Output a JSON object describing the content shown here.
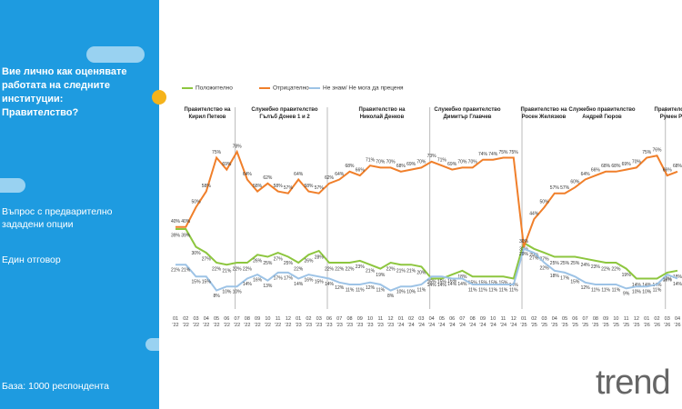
{
  "chart_data": {
    "type": "line",
    "title": "Вие лично как оценявате\nработата на следните\nинституции:\nПравителство?",
    "notes": [
      "Въпрос с предварително\nзададени опции",
      "Един отговор"
    ],
    "base": "База:  1000 респондента",
    "logo": "trend",
    "periods": [
      "Правителство на\nКирил Петков",
      "Служебно правителство\nГълъб Донев 1 и 2",
      "Правителство на\nНиколай Денков",
      "Служебно правителство\nДимитър Главчев",
      "Правителство на\nРосен Желязков",
      "Служебно правителство\nАндрей Гюров",
      "Правителство на\nРумен Радев"
    ],
    "categories": [
      "01\n'22",
      "02\n'22",
      "03\n'22",
      "04\n'22",
      "05\n'22",
      "06\n'22",
      "07\n'22",
      "08\n'22",
      "09\n'22",
      "10\n'22",
      "11\n'22",
      "12\n'22",
      "01\n'23",
      "02\n'23",
      "03\n'23",
      "06\n'23",
      "07\n'23",
      "08\n'23",
      "09\n'23",
      "10\n'23",
      "11\n'23",
      "12\n'23",
      "01\n'24",
      "02\n'24",
      "03\n'24",
      "04\n'24",
      "05\n'24",
      "06\n'24",
      "07\n'24",
      "08\n'24",
      "09\n'24",
      "10\n'24",
      "11\n'24",
      "12\n'24",
      "01\n'25",
      "02\n'25",
      "03\n'25",
      "04\n'25",
      "05\n'25",
      "06\n'25",
      "07\n'25",
      "08\n'25",
      "09\n'25",
      "10\n'25",
      "11\n'25",
      "12\n'25",
      "01\n'26",
      "02\n'26",
      "03\n'26",
      "04\n'26"
    ],
    "ylim": [
      0,
      100
    ],
    "series": [
      {
        "name": "Положително",
        "color": "#8dc63f",
        "values": [
          39,
          39,
          30,
          27,
          22,
          21,
          22,
          22,
          26,
          25,
          27,
          25,
          22,
          26,
          28,
          22,
          22,
          22,
          23,
          21,
          19,
          22,
          21,
          21,
          20,
          14,
          14,
          16,
          18,
          15,
          15,
          15,
          15,
          14,
          32,
          29,
          27,
          25,
          25,
          25,
          24,
          23,
          22,
          22,
          19,
          14,
          14,
          14,
          17,
          18
        ],
        "value_labels": [
          "39%",
          "39%",
          "30%",
          "27%",
          "22%",
          "21%",
          "22%",
          "22%",
          "26%",
          "25%",
          "27%",
          "25%",
          "22%",
          "26%",
          "28%",
          "22%",
          "22%",
          "22%",
          "23%",
          "21%",
          "19%",
          "22%",
          "21%",
          "21%",
          "20%",
          "14%",
          "14%",
          "16%",
          "18%",
          "15%",
          "15%",
          "15%",
          "15%",
          "14%",
          "32%",
          "29%",
          "27%",
          "25%",
          "25%",
          "25%",
          "24%",
          "23%",
          "22%",
          "22%",
          "19%",
          "14%",
          "14%",
          "14%",
          "17%",
          "18%"
        ]
      },
      {
        "name": "Отрицателно",
        "color": "#f07f2a",
        "values": [
          40,
          40,
          50,
          58,
          75,
          69,
          78,
          64,
          58,
          62,
          58,
          57,
          64,
          58,
          57,
          62,
          64,
          68,
          66,
          71,
          70,
          70,
          68,
          69,
          70,
          73,
          71,
          69,
          70,
          70,
          74,
          74,
          75,
          75,
          30,
          44,
          50,
          57,
          57,
          60,
          64,
          66,
          68,
          68,
          69,
          70,
          75,
          76,
          66,
          68
        ],
        "value_labels": [
          "40%",
          "40%",
          "50%",
          "58%",
          "75%",
          "69%",
          "78%",
          "64%",
          "58%",
          "62%",
          "58%",
          "57%",
          "64%",
          "58%",
          "57%",
          "62%",
          "64%",
          "68%",
          "66%",
          "71%",
          "70%",
          "70%",
          "68%",
          "69%",
          "70%",
          "73%",
          "71%",
          "69%",
          "70%",
          "70%",
          "74%",
          "74%",
          "75%",
          "75%",
          "30%",
          "44%",
          "50%",
          "57%",
          "57%",
          "60%",
          "64%",
          "66%",
          "68%",
          "68%",
          "69%",
          "70%",
          "75%",
          "76%",
          "66%",
          "68%"
        ]
      },
      {
        "name": "Не знам/ Не мога да преценя",
        "color": "#9dc3e6",
        "values": [
          21,
          21,
          15,
          15,
          8,
          10,
          10,
          14,
          16,
          13,
          17,
          17,
          14,
          16,
          15,
          14,
          12,
          11,
          11,
          12,
          11,
          8,
          10,
          10,
          11,
          15,
          15,
          14,
          14,
          11,
          11,
          11,
          11,
          11,
          29,
          27,
          22,
          18,
          17,
          15,
          12,
          11,
          11,
          11,
          9,
          10,
          10,
          11,
          16,
          14
        ],
        "value_labels": [
          "21%",
          "21%",
          "15%",
          "15%",
          "8%",
          "10%",
          "10%",
          "14%",
          "16%",
          "13%",
          "17%",
          "17%",
          "14%",
          "16%",
          "15%",
          "14%",
          "12%",
          "11%",
          "11%",
          "12%",
          "11%",
          "8%",
          "10%",
          "10%",
          "11%",
          "15%",
          "15%",
          "14%",
          "14%",
          "11%",
          "11%",
          "11%",
          "11%",
          "11%",
          "29%",
          "27%",
          "22%",
          "18%",
          "17%",
          "15%",
          "12%",
          "11%",
          "11%",
          "11%",
          "9%",
          "10%",
          "10%",
          "11%",
          "16%",
          "14%"
        ]
      }
    ]
  }
}
